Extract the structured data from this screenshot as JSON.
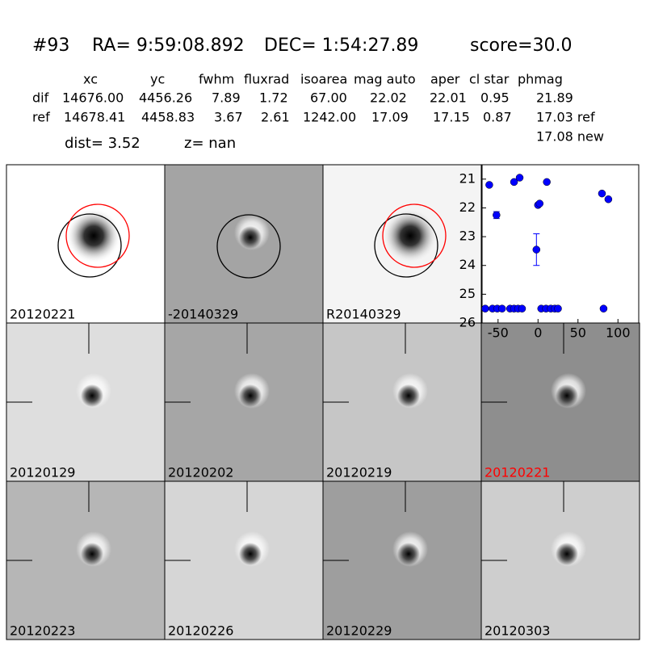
{
  "header": {
    "id": "#93",
    "ra": "RA= 9:59:08.892",
    "dec": "DEC= 1:54:27.89",
    "score": "score=30.0"
  },
  "table": {
    "columns": [
      "xc",
      "yc",
      "fwhm",
      "fluxrad",
      "isoarea",
      "mag auto",
      "aper",
      "cl star",
      "phmag"
    ],
    "rows": [
      [
        "dif",
        "14676.00",
        "4456.26",
        "7.89",
        "1.72",
        "67.00",
        "22.02",
        "22.01",
        "0.95",
        "21.89"
      ],
      [
        "ref",
        "14678.41",
        "4458.83",
        "3.67",
        "2.61",
        "1242.00",
        "17.09",
        "17.15",
        "0.87",
        "17.03 ref"
      ]
    ],
    "extra": "17.08 new"
  },
  "distance": {
    "dist": "dist=  3.52",
    "z": "z=   nan"
  },
  "panels": [
    {
      "label": "20120221"
    },
    {
      "label": "-20140329"
    },
    {
      "label": "R20140329"
    },
    {
      "label": "20120129"
    },
    {
      "label": "20120202"
    },
    {
      "label": "20120219"
    },
    {
      "label": "20120221"
    },
    {
      "label": "20120223"
    },
    {
      "label": "20120226"
    },
    {
      "label": "20120229"
    },
    {
      "label": "20120303"
    }
  ],
  "chart_data": {
    "type": "scatter",
    "color": "#0000ff",
    "x": [
      -61,
      -52,
      -30,
      -23,
      0,
      2,
      -2,
      11,
      80,
      88,
      -66,
      -57,
      -51,
      -45,
      -35,
      -30,
      -25,
      -20,
      4,
      10,
      16,
      21,
      25,
      82
    ],
    "values": [
      21.2,
      22.25,
      21.1,
      20.95,
      21.9,
      21.85,
      23.45,
      21.1,
      21.5,
      21.7,
      25.5,
      25.5,
      25.5,
      25.5,
      25.5,
      25.5,
      25.5,
      25.5,
      25.5,
      25.5,
      25.5,
      25.5,
      25.5,
      25.5
    ],
    "errors": [
      null,
      0.12,
      null,
      null,
      null,
      null,
      0.55,
      null,
      null,
      null,
      null,
      null,
      null,
      null,
      null,
      null,
      null,
      null,
      null,
      null,
      null,
      null,
      null,
      null
    ],
    "xlim": [
      -70,
      126
    ],
    "xticks": [
      -50,
      0,
      50,
      100
    ],
    "ylim": [
      20.5,
      26
    ],
    "yticks": [
      21,
      22,
      23,
      24,
      25,
      26
    ],
    "invert_y": true
  }
}
